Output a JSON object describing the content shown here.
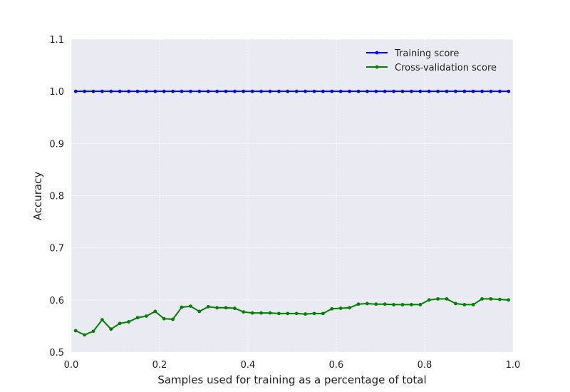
{
  "chart_data": {
    "type": "line",
    "xlabel": "Samples used for training as a percentage of total",
    "ylabel": "Accuracy",
    "xlim": [
      0.0,
      1.0
    ],
    "ylim": [
      0.5,
      1.1
    ],
    "xticks": [
      "0.0",
      "0.2",
      "0.4",
      "0.6",
      "0.8",
      "1.0"
    ],
    "yticks": [
      "0.5",
      "0.6",
      "0.7",
      "0.8",
      "0.9",
      "1.0",
      "1.1"
    ],
    "grid": true,
    "legend_position": "top-right",
    "x": [
      0.01,
      0.03,
      0.05,
      0.07,
      0.09,
      0.11,
      0.13,
      0.15,
      0.17,
      0.19,
      0.21,
      0.23,
      0.25,
      0.27,
      0.29,
      0.31,
      0.33,
      0.35,
      0.37,
      0.39,
      0.41,
      0.43,
      0.45,
      0.47,
      0.49,
      0.51,
      0.53,
      0.55,
      0.57,
      0.59,
      0.61,
      0.63,
      0.65,
      0.67,
      0.69,
      0.71,
      0.73,
      0.75,
      0.77,
      0.79,
      0.81,
      0.83,
      0.85,
      0.87,
      0.89,
      0.91,
      0.93,
      0.95,
      0.97,
      0.99
    ],
    "series": [
      {
        "name": "Training score",
        "color": "#0000ff",
        "values": [
          1.0,
          1.0,
          1.0,
          1.0,
          1.0,
          1.0,
          1.0,
          1.0,
          1.0,
          1.0,
          1.0,
          1.0,
          1.0,
          1.0,
          1.0,
          1.0,
          1.0,
          1.0,
          1.0,
          1.0,
          1.0,
          1.0,
          1.0,
          1.0,
          1.0,
          1.0,
          1.0,
          1.0,
          1.0,
          1.0,
          1.0,
          1.0,
          1.0,
          1.0,
          1.0,
          1.0,
          1.0,
          1.0,
          1.0,
          1.0,
          1.0,
          1.0,
          1.0,
          1.0,
          1.0,
          1.0,
          1.0,
          1.0,
          1.0,
          1.0
        ]
      },
      {
        "name": "Cross-validation score",
        "color": "#008000",
        "values": [
          0.541,
          0.533,
          0.54,
          0.562,
          0.544,
          0.555,
          0.558,
          0.566,
          0.569,
          0.578,
          0.564,
          0.563,
          0.586,
          0.588,
          0.578,
          0.587,
          0.585,
          0.585,
          0.584,
          0.577,
          0.575,
          0.575,
          0.575,
          0.574,
          0.574,
          0.574,
          0.573,
          0.574,
          0.574,
          0.583,
          0.584,
          0.585,
          0.592,
          0.593,
          0.592,
          0.592,
          0.591,
          0.591,
          0.591,
          0.591,
          0.6,
          0.602,
          0.602,
          0.593,
          0.591,
          0.591,
          0.602,
          0.602,
          0.601,
          0.6
        ]
      }
    ]
  }
}
